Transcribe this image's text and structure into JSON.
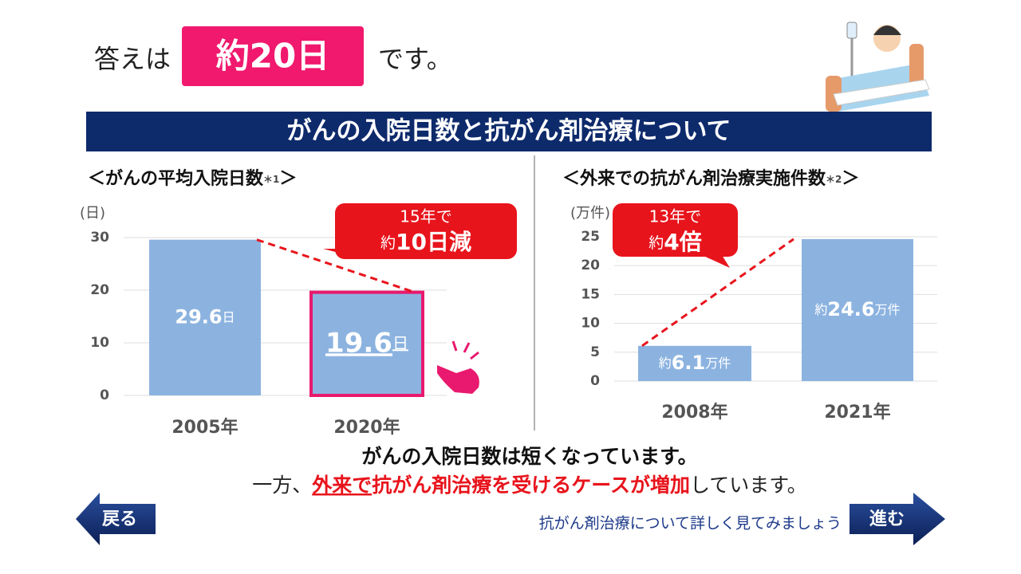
{
  "header": {
    "lead": "答えは",
    "answer": "約20日",
    "tail": "です。"
  },
  "banner": "がんの入院日数と抗がん剤治療について",
  "chart_data": [
    {
      "type": "bar",
      "title": "＜がんの平均入院日数",
      "title_note": "＊1",
      "title_end": "＞",
      "y_label": "(日)",
      "categories": [
        "2005年",
        "2020年"
      ],
      "values": [
        29.6,
        19.6
      ],
      "value_unit": "日",
      "color": "#8cb3e0",
      "highlight_index": 1,
      "ylim": [
        0,
        30
      ],
      "yticks": [
        0,
        10,
        20,
        30
      ],
      "grid": true,
      "annotation": {
        "line1": "15年で",
        "prefix": "約",
        "line2": "10日減"
      }
    },
    {
      "type": "bar",
      "title": "＜外来での抗がん剤治療実施件数",
      "title_note": "＊2",
      "title_end": "＞",
      "y_label": "(万件)",
      "categories": [
        "2008年",
        "2021年"
      ],
      "values": [
        6.1,
        24.6
      ],
      "value_prefix": "約",
      "value_unit": "万件",
      "color": "#8cb3e0",
      "ylim": [
        0,
        25
      ],
      "yticks": [
        0,
        5,
        10,
        15,
        20,
        25
      ],
      "grid": true,
      "annotation": {
        "line1": "13年で",
        "prefix": "約",
        "line2": "4倍"
      }
    }
  ],
  "summary": {
    "line1": "がんの入院日数は短くなっています。",
    "line2": [
      "一方、",
      "外来で",
      "抗がん剤治療を受けるケースが増加",
      "しています。"
    ]
  },
  "nav": {
    "back": "戻る",
    "next": "進む",
    "hint": "抗がん剤治療について詳しく見てみましょう"
  }
}
